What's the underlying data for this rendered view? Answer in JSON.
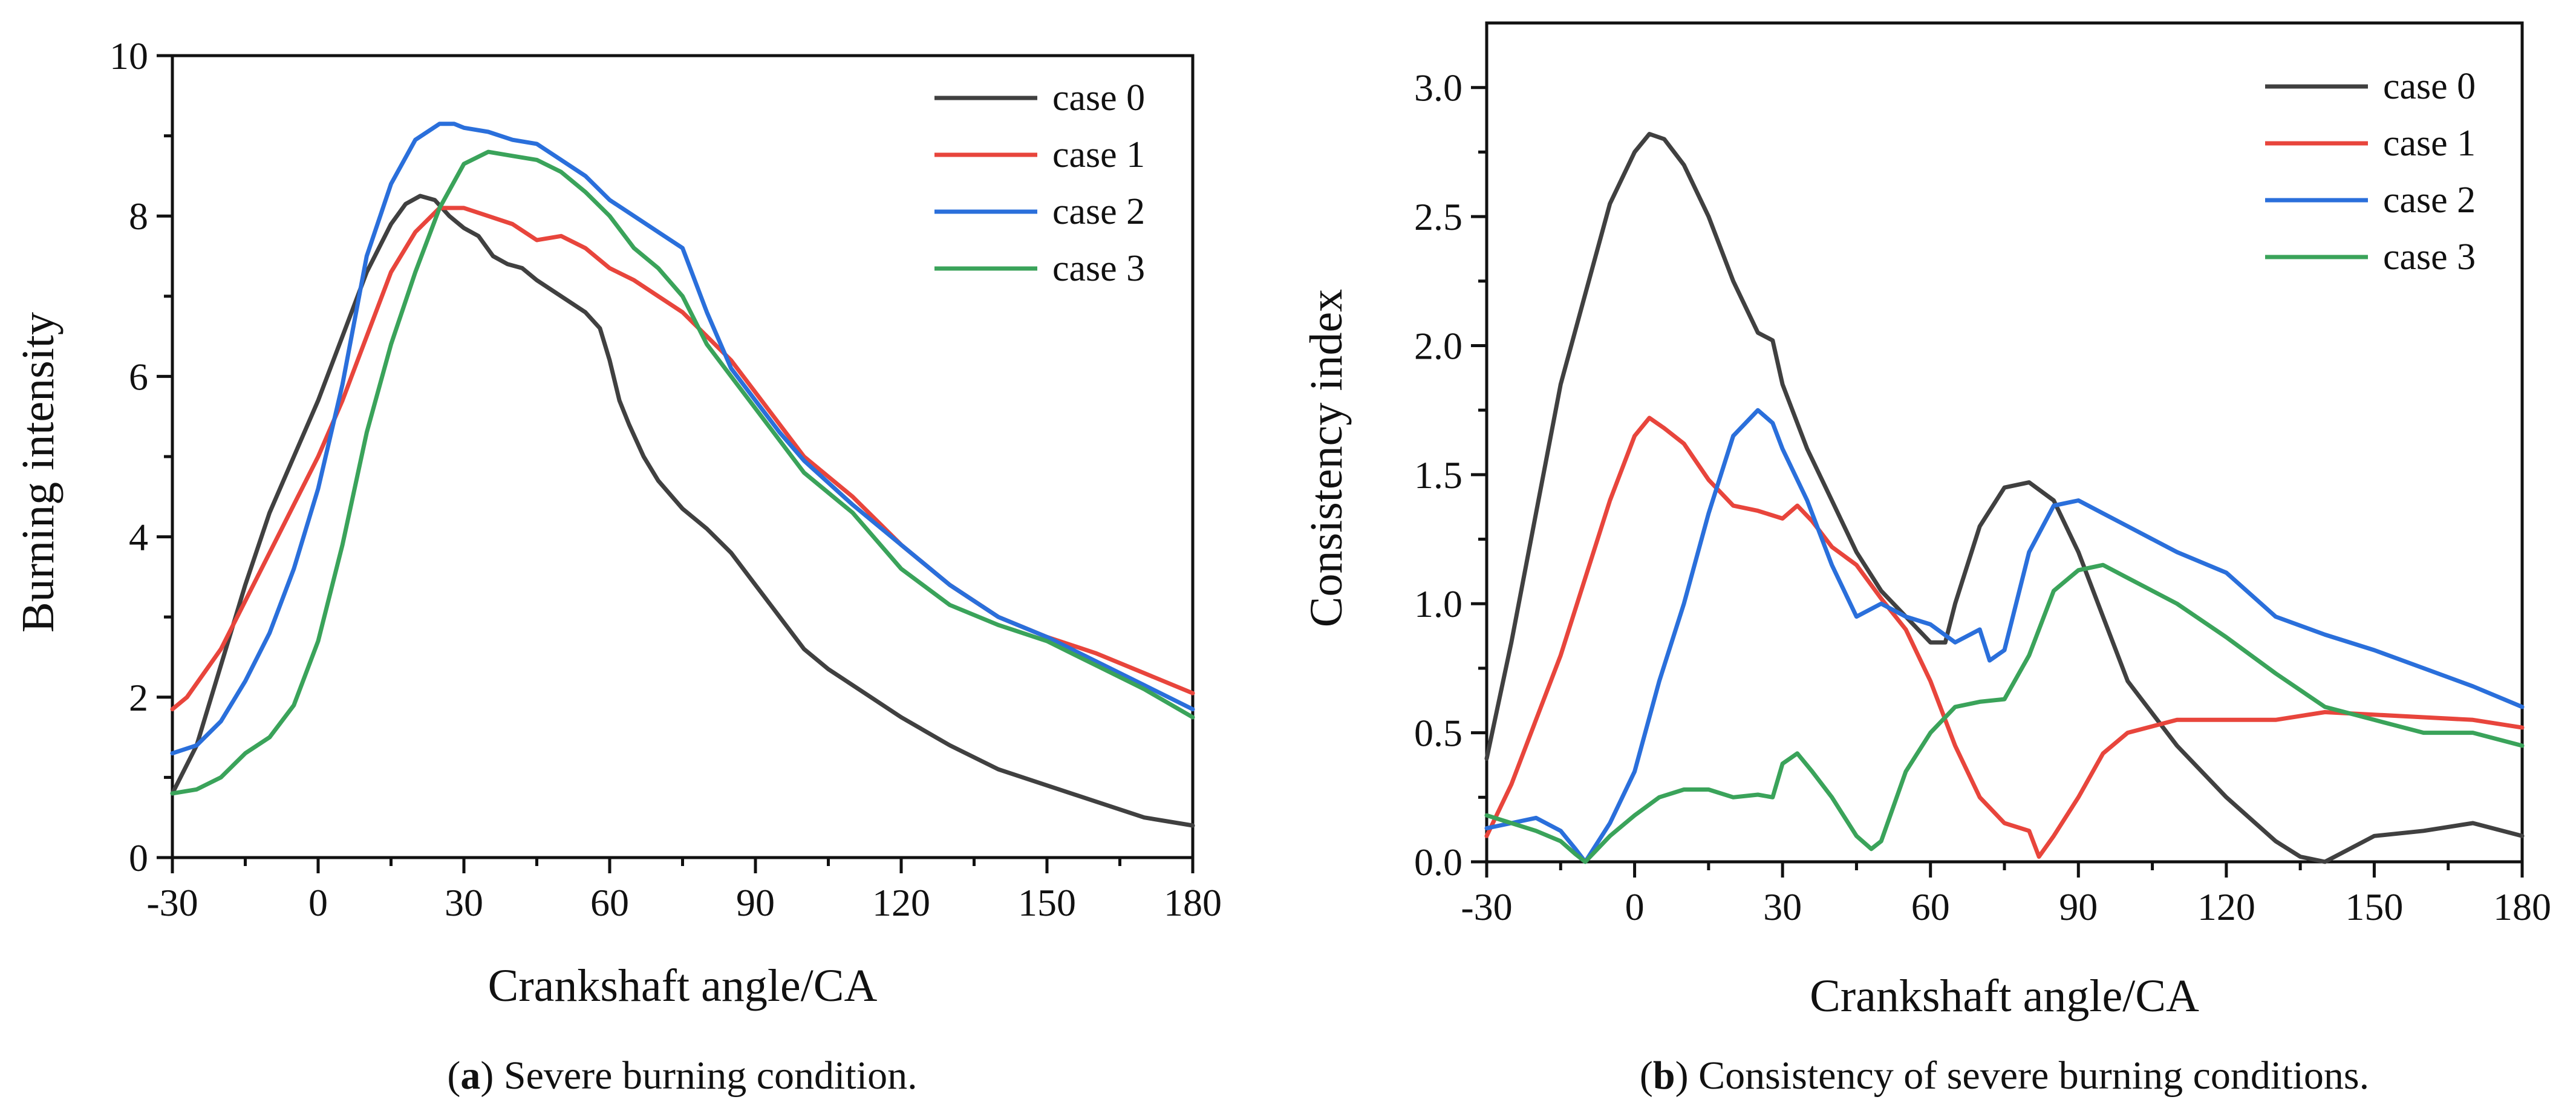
{
  "chart_data": [
    {
      "type": "line",
      "panel": "a",
      "caption_letter": "a",
      "caption_text": ") Severe burning condition.",
      "caption_open": "(",
      "xlabel": "Crankshaft angle/CA",
      "ylabel": "Burning intensity",
      "xlim": [
        -30,
        180
      ],
      "ylim": [
        0,
        10
      ],
      "xticks": [
        -30,
        0,
        30,
        60,
        90,
        120,
        150,
        180
      ],
      "yticks": [
        0,
        2,
        4,
        6,
        8,
        10
      ],
      "legend_position": "top-right",
      "grid": false,
      "series": [
        {
          "name": "case 0",
          "color": "#404040",
          "x": [
            -30,
            -25,
            -20,
            -15,
            -10,
            -5,
            0,
            5,
            10,
            15,
            18,
            21,
            24,
            27,
            30,
            33,
            36,
            39,
            42,
            45,
            50,
            55,
            58,
            60,
            62,
            64,
            67,
            70,
            75,
            80,
            85,
            90,
            95,
            100,
            105,
            110,
            120,
            130,
            140,
            150,
            160,
            170,
            180
          ],
          "y": [
            0.8,
            1.4,
            2.4,
            3.4,
            4.3,
            5.0,
            5.7,
            6.5,
            7.3,
            7.9,
            8.15,
            8.25,
            8.2,
            8.0,
            7.85,
            7.75,
            7.5,
            7.4,
            7.35,
            7.2,
            7.0,
            6.8,
            6.6,
            6.2,
            5.7,
            5.4,
            5.0,
            4.7,
            4.35,
            4.1,
            3.8,
            3.4,
            3.0,
            2.6,
            2.35,
            2.15,
            1.75,
            1.4,
            1.1,
            0.9,
            0.7,
            0.5,
            0.4
          ]
        },
        {
          "name": "case 1",
          "color": "#e8453c",
          "x": [
            -30,
            -27,
            -20,
            -15,
            -10,
            -5,
            0,
            5,
            10,
            15,
            20,
            25,
            30,
            35,
            40,
            45,
            50,
            55,
            60,
            65,
            70,
            75,
            80,
            85,
            90,
            95,
            100,
            110,
            120,
            130,
            140,
            150,
            160,
            170,
            180
          ],
          "y": [
            1.85,
            2.0,
            2.6,
            3.2,
            3.8,
            4.4,
            5.0,
            5.7,
            6.5,
            7.3,
            7.8,
            8.1,
            8.1,
            8.0,
            7.9,
            7.7,
            7.75,
            7.6,
            7.35,
            7.2,
            7.0,
            6.8,
            6.5,
            6.2,
            5.8,
            5.4,
            5.0,
            4.5,
            3.9,
            3.4,
            3.0,
            2.75,
            2.55,
            2.3,
            2.05
          ]
        },
        {
          "name": "case 2",
          "color": "#2a6fdb",
          "x": [
            -30,
            -25,
            -20,
            -15,
            -10,
            -5,
            0,
            5,
            10,
            15,
            20,
            25,
            28,
            30,
            35,
            40,
            45,
            50,
            55,
            60,
            65,
            70,
            75,
            80,
            85,
            90,
            95,
            100,
            110,
            120,
            130,
            140,
            150,
            160,
            170,
            180
          ],
          "y": [
            1.3,
            1.4,
            1.7,
            2.2,
            2.8,
            3.6,
            4.6,
            5.9,
            7.5,
            8.4,
            8.95,
            9.15,
            9.15,
            9.1,
            9.05,
            8.95,
            8.9,
            8.7,
            8.5,
            8.2,
            8.0,
            7.8,
            7.6,
            6.8,
            6.1,
            5.7,
            5.3,
            4.95,
            4.4,
            3.9,
            3.4,
            3.0,
            2.75,
            2.45,
            2.15,
            1.85
          ]
        },
        {
          "name": "case 3",
          "color": "#3aa35a",
          "x": [
            -30,
            -25,
            -20,
            -15,
            -10,
            -5,
            0,
            5,
            10,
            15,
            20,
            25,
            30,
            35,
            40,
            45,
            50,
            55,
            60,
            65,
            70,
            75,
            80,
            85,
            90,
            95,
            100,
            110,
            120,
            130,
            140,
            150,
            160,
            170,
            180
          ],
          "y": [
            0.8,
            0.85,
            1.0,
            1.3,
            1.5,
            1.9,
            2.7,
            3.9,
            5.3,
            6.4,
            7.3,
            8.1,
            8.65,
            8.8,
            8.75,
            8.7,
            8.55,
            8.3,
            8.0,
            7.6,
            7.35,
            7.0,
            6.4,
            6.0,
            5.6,
            5.2,
            4.8,
            4.3,
            3.6,
            3.15,
            2.9,
            2.7,
            2.4,
            2.1,
            1.75
          ]
        }
      ]
    },
    {
      "type": "line",
      "panel": "b",
      "caption_letter": "b",
      "caption_text": ") Consistency of severe burning conditions.",
      "caption_open": "(",
      "xlabel": "Crankshaft angle/CA",
      "ylabel": "Consistency index",
      "xlim": [
        -30,
        180
      ],
      "ylim": [
        0,
        3.25
      ],
      "xticks": [
        -30,
        0,
        30,
        60,
        90,
        120,
        150,
        180
      ],
      "yticks": [
        0.0,
        0.5,
        1.0,
        1.5,
        2.0,
        2.5,
        3.0
      ],
      "ytick_labels": [
        "0.0",
        "0.5",
        "1.0",
        "1.5",
        "2.0",
        "2.5",
        "3.0"
      ],
      "legend_position": "top-right",
      "grid": false,
      "series": [
        {
          "name": "case 0",
          "color": "#404040",
          "x": [
            -30,
            -25,
            -20,
            -15,
            -10,
            -5,
            0,
            3,
            6,
            10,
            15,
            20,
            25,
            28,
            30,
            35,
            40,
            45,
            50,
            55,
            60,
            63,
            65,
            70,
            75,
            80,
            85,
            90,
            95,
            100,
            110,
            120,
            130,
            135,
            140,
            145,
            150,
            160,
            170,
            180
          ],
          "y": [
            0.4,
            0.85,
            1.35,
            1.85,
            2.2,
            2.55,
            2.75,
            2.82,
            2.8,
            2.7,
            2.5,
            2.25,
            2.05,
            2.02,
            1.85,
            1.6,
            1.4,
            1.2,
            1.05,
            0.95,
            0.85,
            0.85,
            1.0,
            1.3,
            1.45,
            1.47,
            1.4,
            1.2,
            0.95,
            0.7,
            0.45,
            0.25,
            0.08,
            0.02,
            0.0,
            0.05,
            0.1,
            0.12,
            0.15,
            0.1
          ]
        },
        {
          "name": "case 1",
          "color": "#e8453c",
          "x": [
            -30,
            -25,
            -20,
            -15,
            -10,
            -5,
            0,
            3,
            6,
            10,
            15,
            20,
            25,
            30,
            33,
            36,
            40,
            45,
            50,
            55,
            60,
            65,
            70,
            75,
            80,
            82,
            85,
            90,
            95,
            100,
            110,
            120,
            130,
            140,
            150,
            160,
            170,
            180
          ],
          "y": [
            0.1,
            0.3,
            0.55,
            0.8,
            1.1,
            1.4,
            1.65,
            1.72,
            1.68,
            1.62,
            1.48,
            1.38,
            1.36,
            1.33,
            1.38,
            1.32,
            1.22,
            1.15,
            1.02,
            0.9,
            0.7,
            0.45,
            0.25,
            0.15,
            0.12,
            0.02,
            0.1,
            0.25,
            0.42,
            0.5,
            0.55,
            0.55,
            0.55,
            0.58,
            0.57,
            0.56,
            0.55,
            0.52
          ]
        },
        {
          "name": "case 2",
          "color": "#2a6fdb",
          "x": [
            -30,
            -25,
            -20,
            -15,
            -12,
            -10,
            -5,
            0,
            5,
            10,
            15,
            20,
            25,
            28,
            30,
            35,
            40,
            45,
            50,
            55,
            60,
            65,
            70,
            72,
            75,
            80,
            85,
            90,
            95,
            100,
            110,
            120,
            130,
            140,
            150,
            160,
            170,
            180
          ],
          "y": [
            0.13,
            0.15,
            0.17,
            0.12,
            0.05,
            0.0,
            0.15,
            0.35,
            0.7,
            1.0,
            1.35,
            1.65,
            1.75,
            1.7,
            1.6,
            1.4,
            1.15,
            0.95,
            1.0,
            0.95,
            0.92,
            0.85,
            0.9,
            0.78,
            0.82,
            1.2,
            1.38,
            1.4,
            1.35,
            1.3,
            1.2,
            1.12,
            0.95,
            0.88,
            0.82,
            0.75,
            0.68,
            0.6
          ]
        },
        {
          "name": "case 3",
          "color": "#3aa35a",
          "x": [
            -30,
            -25,
            -20,
            -15,
            -12,
            -10,
            -5,
            0,
            5,
            10,
            15,
            20,
            25,
            28,
            30,
            33,
            36,
            40,
            45,
            48,
            50,
            55,
            60,
            65,
            70,
            75,
            80,
            85,
            90,
            95,
            100,
            110,
            120,
            130,
            140,
            150,
            160,
            170,
            180
          ],
          "y": [
            0.18,
            0.15,
            0.12,
            0.08,
            0.03,
            0.0,
            0.1,
            0.18,
            0.25,
            0.28,
            0.28,
            0.25,
            0.26,
            0.25,
            0.38,
            0.42,
            0.35,
            0.25,
            0.1,
            0.05,
            0.08,
            0.35,
            0.5,
            0.6,
            0.62,
            0.63,
            0.8,
            1.05,
            1.13,
            1.15,
            1.1,
            1.0,
            0.87,
            0.73,
            0.6,
            0.55,
            0.5,
            0.5,
            0.45
          ]
        }
      ]
    }
  ]
}
